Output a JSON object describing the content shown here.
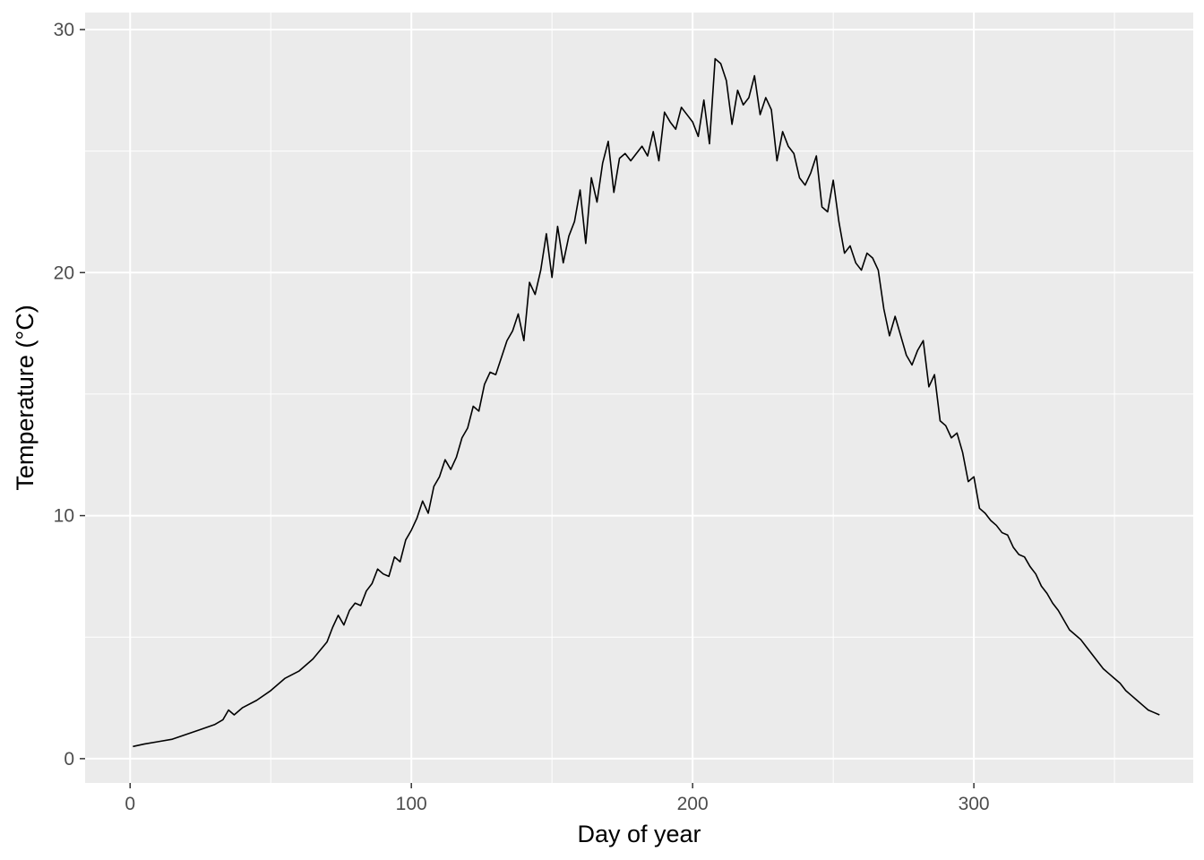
{
  "chart_data": {
    "type": "line",
    "title": "",
    "xlabel": "Day of year",
    "ylabel": "Temperature (°C)",
    "xlim": [
      -16,
      378
    ],
    "ylim": [
      -1,
      30.7
    ],
    "x_ticks": [
      0,
      100,
      200,
      300
    ],
    "x_tick_labels": [
      "0",
      "100",
      "200",
      "300"
    ],
    "y_ticks": [
      0,
      10,
      20,
      30
    ],
    "y_tick_labels": [
      "0",
      "10",
      "20",
      "30"
    ],
    "grid": true,
    "legend": "none",
    "colors": {
      "panel": "#ebebeb",
      "grid": "#ffffff",
      "line": "#000000",
      "tick_text": "#4d4d4d",
      "tick_mark": "#333333"
    },
    "series": [
      {
        "x": [
          1,
          5,
          10,
          15,
          20,
          25,
          30,
          33,
          35,
          37,
          40,
          45,
          50,
          55,
          60,
          65,
          70,
          72,
          74,
          76,
          78,
          80,
          82,
          84,
          86,
          88,
          90,
          92,
          94,
          96,
          98,
          100,
          102,
          104,
          106,
          108,
          110,
          112,
          114,
          116,
          118,
          120,
          122,
          124,
          126,
          128,
          130,
          132,
          134,
          136,
          138,
          140,
          142,
          144,
          146,
          148,
          150,
          152,
          154,
          156,
          158,
          160,
          162,
          164,
          166,
          168,
          170,
          172,
          174,
          176,
          178,
          180,
          182,
          184,
          186,
          188,
          190,
          192,
          194,
          196,
          198,
          200,
          202,
          204,
          206,
          208,
          210,
          212,
          214,
          216,
          218,
          220,
          222,
          224,
          226,
          228,
          230,
          232,
          234,
          236,
          238,
          240,
          242,
          244,
          246,
          248,
          250,
          252,
          254,
          256,
          258,
          260,
          262,
          264,
          266,
          268,
          270,
          272,
          274,
          276,
          278,
          280,
          282,
          284,
          286,
          288,
          290,
          292,
          294,
          296,
          298,
          300,
          302,
          304,
          306,
          308,
          310,
          312,
          314,
          316,
          318,
          320,
          322,
          324,
          326,
          328,
          330,
          332,
          334,
          336,
          338,
          340,
          342,
          344,
          346,
          348,
          350,
          352,
          354,
          356,
          358,
          360,
          362,
          364,
          366
        ],
        "y": [
          0.5,
          0.6,
          0.7,
          0.8,
          1.0,
          1.2,
          1.4,
          1.6,
          2.0,
          1.8,
          2.1,
          2.4,
          2.8,
          3.3,
          3.6,
          4.1,
          4.8,
          5.4,
          5.9,
          5.5,
          6.1,
          6.4,
          6.3,
          6.9,
          7.2,
          7.8,
          7.6,
          7.5,
          8.3,
          8.1,
          9.0,
          9.4,
          9.9,
          10.6,
          10.1,
          11.2,
          11.6,
          12.3,
          11.9,
          12.4,
          13.2,
          13.6,
          14.5,
          14.3,
          15.4,
          15.9,
          15.8,
          16.5,
          17.2,
          17.6,
          18.3,
          17.2,
          19.6,
          19.1,
          20.1,
          21.6,
          19.8,
          21.9,
          20.4,
          21.5,
          22.1,
          23.4,
          21.2,
          23.9,
          22.9,
          24.5,
          25.4,
          23.3,
          24.7,
          24.9,
          24.6,
          24.9,
          25.2,
          24.8,
          25.8,
          24.6,
          26.6,
          26.2,
          25.9,
          26.8,
          26.5,
          26.2,
          25.6,
          27.1,
          25.3,
          28.8,
          28.6,
          27.9,
          26.1,
          27.5,
          26.9,
          27.2,
          28.1,
          26.5,
          27.2,
          26.7,
          24.6,
          25.8,
          25.2,
          24.9,
          23.9,
          23.6,
          24.1,
          24.8,
          22.7,
          22.5,
          23.8,
          22.1,
          20.8,
          21.1,
          20.4,
          20.1,
          20.8,
          20.6,
          20.1,
          18.5,
          17.4,
          18.2,
          17.4,
          16.6,
          16.2,
          16.8,
          17.2,
          15.3,
          15.8,
          13.9,
          13.7,
          13.2,
          13.4,
          12.6,
          11.4,
          11.6,
          10.3,
          10.1,
          9.8,
          9.6,
          9.3,
          9.2,
          8.7,
          8.4,
          8.3,
          7.9,
          7.6,
          7.1,
          6.8,
          6.4,
          6.1,
          5.7,
          5.3,
          5.1,
          4.9,
          4.6,
          4.3,
          4.0,
          3.7,
          3.5,
          3.3,
          3.1,
          2.8,
          2.6,
          2.4,
          2.2,
          2.0,
          1.9,
          1.8
        ]
      }
    ]
  }
}
